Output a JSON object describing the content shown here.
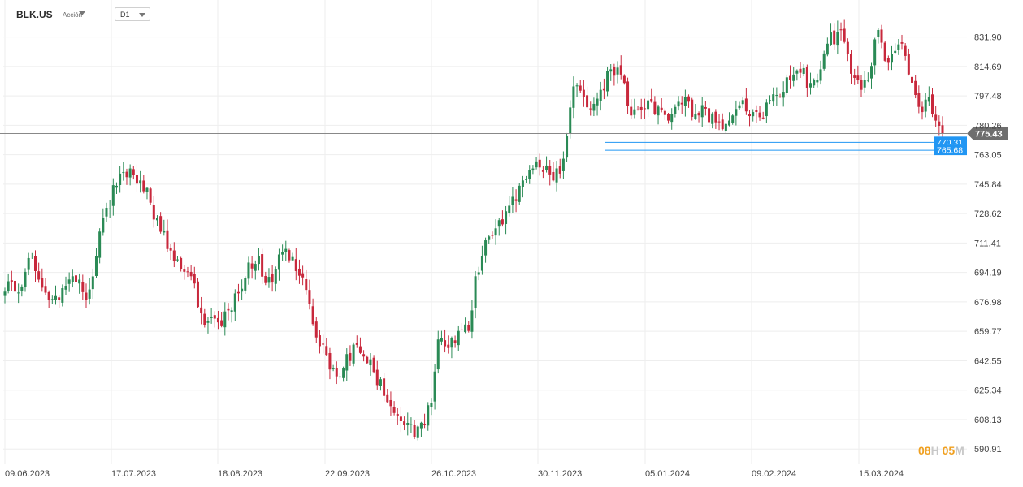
{
  "toolbar": {
    "ticker": "BLK.US",
    "asset_type": "Acción",
    "timeframe": "D1"
  },
  "countdown": {
    "hours": "08",
    "hours_unit": "H",
    "minutes": "05",
    "minutes_unit": "M"
  },
  "colors": {
    "up": "#2a8a55",
    "down": "#c8283c",
    "grid": "#eeeeee",
    "current_line": "#888888",
    "level_line": "#2196f3"
  },
  "chart_data": {
    "type": "candlestick",
    "instrument": "BLK.US",
    "timeframe": "D1",
    "ylim": [
      582.0,
      845.0
    ],
    "y_ticks": [
      "831.90",
      "814.69",
      "797.48",
      "780.26",
      "763.05",
      "745.84",
      "728.62",
      "711.41",
      "694.19",
      "676.98",
      "659.77",
      "642.55",
      "625.34",
      "608.13",
      "590.91"
    ],
    "x_ticks": [
      "09.06.2023",
      "17.07.2023",
      "18.08.2023",
      "22.09.2023",
      "26.10.2023",
      "30.11.2023",
      "05.01.2024",
      "09.02.2024",
      "15.03.2024"
    ],
    "current_price": {
      "value": 775.43,
      "label": "775.43"
    },
    "levels": [
      {
        "value": 770.31,
        "label": "770.31"
      },
      {
        "value": 765.68,
        "label": "765.68"
      }
    ],
    "anchors": [
      {
        "i": 0,
        "c": 683
      },
      {
        "i": 5,
        "c": 686
      },
      {
        "i": 8,
        "c": 704
      },
      {
        "i": 10,
        "c": 690
      },
      {
        "i": 13,
        "c": 678
      },
      {
        "i": 17,
        "c": 685
      },
      {
        "i": 20,
        "c": 692
      },
      {
        "i": 24,
        "c": 678
      },
      {
        "i": 27,
        "c": 704
      },
      {
        "i": 30,
        "c": 732
      },
      {
        "i": 34,
        "c": 752
      },
      {
        "i": 37,
        "c": 755
      },
      {
        "i": 40,
        "c": 748
      },
      {
        "i": 43,
        "c": 735
      },
      {
        "i": 46,
        "c": 718
      },
      {
        "i": 49,
        "c": 707
      },
      {
        "i": 52,
        "c": 696
      },
      {
        "i": 55,
        "c": 692
      },
      {
        "i": 57,
        "c": 674
      },
      {
        "i": 60,
        "c": 666
      },
      {
        "i": 63,
        "c": 665
      },
      {
        "i": 66,
        "c": 672
      },
      {
        "i": 69,
        "c": 682
      },
      {
        "i": 72,
        "c": 700
      },
      {
        "i": 75,
        "c": 704
      },
      {
        "i": 77,
        "c": 688
      },
      {
        "i": 80,
        "c": 696
      },
      {
        "i": 83,
        "c": 708
      },
      {
        "i": 86,
        "c": 695
      },
      {
        "i": 89,
        "c": 684
      },
      {
        "i": 91,
        "c": 664
      },
      {
        "i": 94,
        "c": 652
      },
      {
        "i": 97,
        "c": 638
      },
      {
        "i": 100,
        "c": 638
      },
      {
        "i": 103,
        "c": 652
      },
      {
        "i": 106,
        "c": 645
      },
      {
        "i": 109,
        "c": 636
      },
      {
        "i": 112,
        "c": 622
      },
      {
        "i": 115,
        "c": 612
      },
      {
        "i": 118,
        "c": 605
      },
      {
        "i": 121,
        "c": 598
      },
      {
        "i": 124,
        "c": 605
      },
      {
        "i": 126,
        "c": 618
      },
      {
        "i": 128,
        "c": 655
      },
      {
        "i": 131,
        "c": 650
      },
      {
        "i": 134,
        "c": 660
      },
      {
        "i": 137,
        "c": 660
      },
      {
        "i": 139,
        "c": 692
      },
      {
        "i": 142,
        "c": 713
      },
      {
        "i": 145,
        "c": 720
      },
      {
        "i": 148,
        "c": 730
      },
      {
        "i": 151,
        "c": 736
      },
      {
        "i": 153,
        "c": 748
      },
      {
        "i": 156,
        "c": 755
      },
      {
        "i": 159,
        "c": 753
      },
      {
        "i": 162,
        "c": 748
      },
      {
        "i": 164,
        "c": 752
      },
      {
        "i": 166,
        "c": 774
      },
      {
        "i": 168,
        "c": 803
      },
      {
        "i": 171,
        "c": 797
      },
      {
        "i": 173,
        "c": 790
      },
      {
        "i": 176,
        "c": 801
      },
      {
        "i": 179,
        "c": 813
      },
      {
        "i": 181,
        "c": 814
      },
      {
        "i": 183,
        "c": 805
      },
      {
        "i": 185,
        "c": 786
      },
      {
        "i": 188,
        "c": 789
      },
      {
        "i": 191,
        "c": 794
      },
      {
        "i": 194,
        "c": 789
      },
      {
        "i": 196,
        "c": 783
      },
      {
        "i": 198,
        "c": 791
      },
      {
        "i": 201,
        "c": 797
      },
      {
        "i": 204,
        "c": 787
      },
      {
        "i": 207,
        "c": 790
      },
      {
        "i": 210,
        "c": 782
      },
      {
        "i": 212,
        "c": 778
      },
      {
        "i": 215,
        "c": 786
      },
      {
        "i": 218,
        "c": 795
      },
      {
        "i": 221,
        "c": 788
      },
      {
        "i": 223,
        "c": 785
      },
      {
        "i": 226,
        "c": 795
      },
      {
        "i": 229,
        "c": 797
      },
      {
        "i": 232,
        "c": 807
      },
      {
        "i": 235,
        "c": 811
      },
      {
        "i": 238,
        "c": 805
      },
      {
        "i": 241,
        "c": 813
      },
      {
        "i": 243,
        "c": 828
      },
      {
        "i": 246,
        "c": 835
      },
      {
        "i": 249,
        "c": 822
      },
      {
        "i": 251,
        "c": 808
      },
      {
        "i": 253,
        "c": 801
      },
      {
        "i": 256,
        "c": 815
      },
      {
        "i": 258,
        "c": 836
      },
      {
        "i": 260,
        "c": 818
      },
      {
        "i": 262,
        "c": 822
      },
      {
        "i": 265,
        "c": 828
      },
      {
        "i": 267,
        "c": 810
      },
      {
        "i": 269,
        "c": 798
      },
      {
        "i": 271,
        "c": 788
      },
      {
        "i": 273,
        "c": 797
      },
      {
        "i": 275,
        "c": 783
      },
      {
        "i": 277,
        "c": 775.43
      }
    ]
  }
}
